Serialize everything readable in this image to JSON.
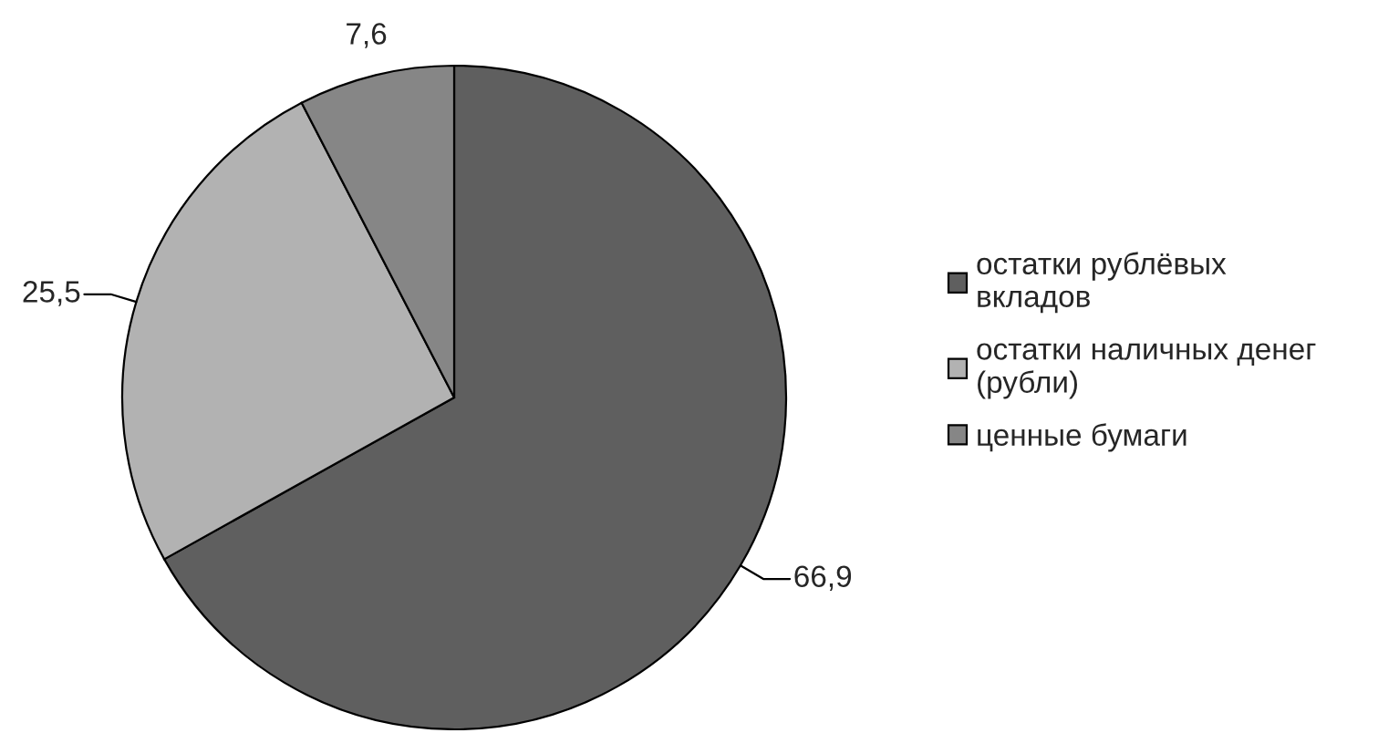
{
  "chart_data": {
    "type": "pie",
    "categories": [
      "остатки рублёвых вкладов",
      "остатки наличных денег (рубли)",
      "ценные бумаги"
    ],
    "values": [
      66.9,
      25.5,
      7.6
    ],
    "colors": [
      "#5f5f5f",
      "#b2b2b2",
      "#868686"
    ],
    "value_labels": [
      "66,9",
      "25,5",
      "7,6"
    ],
    "legend": "right"
  }
}
